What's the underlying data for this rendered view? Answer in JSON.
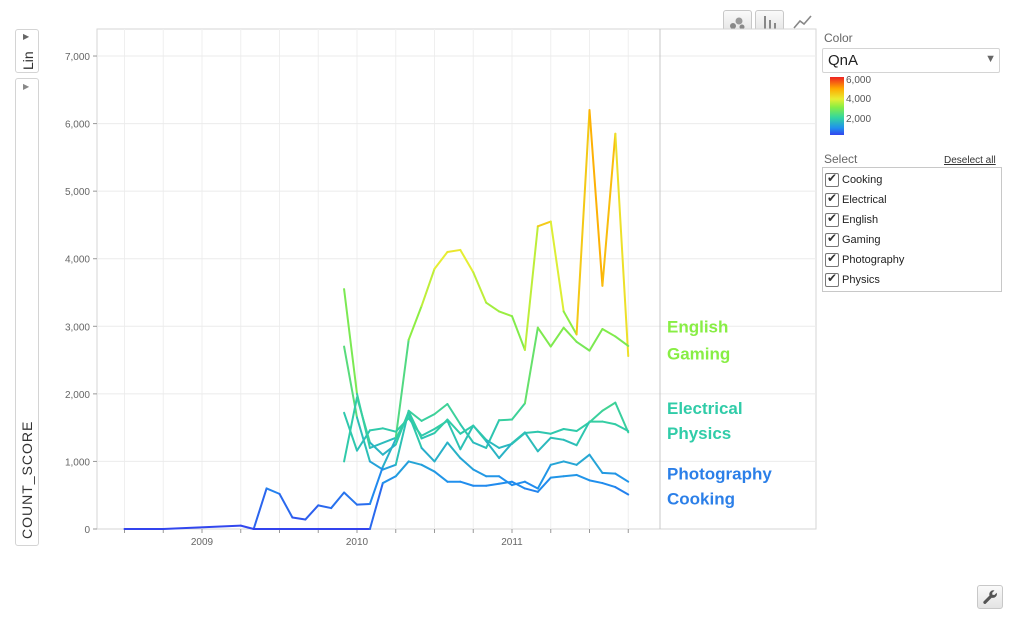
{
  "controls": {
    "scale_button": "Lin",
    "y_axis_metric": "COUNT_SCORE"
  },
  "icons": {
    "bubble": "bubble-chart-icon",
    "bar": "bar-chart-icon",
    "line": "line-chart-icon",
    "wrench": "wrench-icon",
    "dropdown": "chevron-down-icon"
  },
  "color_panel": {
    "label": "Color",
    "selected": "QnA",
    "gradient_ticks": [
      "6,000",
      "4,000",
      "2,000"
    ],
    "gradient_colors": [
      "#ee2222",
      "#ffaa00",
      "#e8ee33",
      "#88ee44",
      "#33d6a0",
      "#2090ee",
      "#3344ee"
    ]
  },
  "select_panel": {
    "label": "Select",
    "deselect_all": "Deselect all",
    "items": [
      "Cooking",
      "Electrical",
      "English",
      "Gaming",
      "Photography",
      "Physics"
    ]
  },
  "chart_data": {
    "type": "line",
    "xlabel": "",
    "ylabel": "COUNT_SCORE",
    "ylim": [
      0,
      7400
    ],
    "y_ticks": [
      "0",
      "1,000",
      "2,000",
      "3,000",
      "4,000",
      "5,000",
      "6,000",
      "7,000"
    ],
    "x_ticks": [
      "2009",
      "2010",
      "2011"
    ],
    "x_range": [
      "2008-07",
      "2012-01"
    ],
    "grid": true,
    "color_by": "QnA",
    "color_scale": [
      [
        0,
        "#3344ee"
      ],
      [
        700,
        "#2090ee"
      ],
      [
        1500,
        "#30cca8"
      ],
      [
        3000,
        "#88ee44"
      ],
      [
        4000,
        "#e8ee33"
      ],
      [
        5000,
        "#ffaa00"
      ],
      [
        6200,
        "#ee2222"
      ]
    ],
    "series": [
      {
        "name": "English",
        "points": [
          [
            "2009-12",
            3550
          ],
          [
            "2010-01",
            2000
          ],
          [
            "2010-02",
            1200
          ],
          [
            "2010-04",
            1350
          ],
          [
            "2010-05",
            2800
          ],
          [
            "2010-06",
            3300
          ],
          [
            "2010-07",
            3850
          ],
          [
            "2010-08",
            4100
          ],
          [
            "2010-09",
            4130
          ],
          [
            "2010-10",
            3800
          ],
          [
            "2010-11",
            3350
          ],
          [
            "2010-12",
            3220
          ],
          [
            "2011-01",
            3150
          ],
          [
            "2011-02",
            2650
          ],
          [
            "2011-03",
            4480
          ],
          [
            "2011-04",
            4550
          ],
          [
            "2011-05",
            3220
          ],
          [
            "2011-06",
            2880
          ],
          [
            "2011-07",
            6200
          ],
          [
            "2011-08",
            3600
          ],
          [
            "2011-09",
            5850
          ],
          [
            "2011-10",
            2560
          ]
        ]
      },
      {
        "name": "Gaming",
        "points": [
          [
            "2009-12",
            2700
          ],
          [
            "2010-01",
            1650
          ],
          [
            "2010-02",
            1000
          ],
          [
            "2010-03",
            880
          ],
          [
            "2010-04",
            950
          ],
          [
            "2010-05",
            1750
          ],
          [
            "2010-06",
            1600
          ],
          [
            "2010-07",
            1700
          ],
          [
            "2010-08",
            1850
          ],
          [
            "2010-09",
            1550
          ],
          [
            "2010-10",
            1280
          ],
          [
            "2010-11",
            1200
          ],
          [
            "2010-12",
            1610
          ],
          [
            "2011-01",
            1620
          ],
          [
            "2011-02",
            1860
          ],
          [
            "2011-03",
            2980
          ],
          [
            "2011-04",
            2700
          ],
          [
            "2011-05",
            2980
          ],
          [
            "2011-06",
            2770
          ],
          [
            "2011-07",
            2640
          ],
          [
            "2011-08",
            2960
          ],
          [
            "2011-09",
            2850
          ],
          [
            "2011-10",
            2710
          ]
        ]
      },
      {
        "name": "Electrical",
        "points": [
          [
            "2009-12",
            1720
          ],
          [
            "2010-01",
            1160
          ],
          [
            "2010-02",
            1460
          ],
          [
            "2010-03",
            1490
          ],
          [
            "2010-04",
            1440
          ],
          [
            "2010-05",
            1640
          ],
          [
            "2010-06",
            1380
          ],
          [
            "2010-07",
            1480
          ],
          [
            "2010-08",
            1600
          ],
          [
            "2010-09",
            1180
          ],
          [
            "2010-10",
            1530
          ],
          [
            "2010-11",
            1320
          ],
          [
            "2010-12",
            1200
          ],
          [
            "2011-01",
            1260
          ],
          [
            "2011-02",
            1420
          ],
          [
            "2011-03",
            1440
          ],
          [
            "2011-04",
            1410
          ],
          [
            "2011-05",
            1480
          ],
          [
            "2011-06",
            1450
          ],
          [
            "2011-07",
            1580
          ],
          [
            "2011-08",
            1750
          ],
          [
            "2011-09",
            1870
          ],
          [
            "2011-10",
            1430
          ]
        ]
      },
      {
        "name": "Physics",
        "points": [
          [
            "2009-12",
            1000
          ],
          [
            "2010-01",
            1950
          ],
          [
            "2010-02",
            1280
          ],
          [
            "2010-03",
            1100
          ],
          [
            "2010-04",
            1250
          ],
          [
            "2010-05",
            1740
          ],
          [
            "2010-06",
            1340
          ],
          [
            "2010-07",
            1420
          ],
          [
            "2010-08",
            1620
          ],
          [
            "2010-09",
            1410
          ],
          [
            "2010-10",
            1530
          ],
          [
            "2010-11",
            1300
          ],
          [
            "2010-12",
            1050
          ],
          [
            "2011-01",
            1270
          ],
          [
            "2011-02",
            1430
          ],
          [
            "2011-03",
            1150
          ],
          [
            "2011-04",
            1350
          ],
          [
            "2011-05",
            1320
          ],
          [
            "2011-06",
            1240
          ],
          [
            "2011-07",
            1590
          ],
          [
            "2011-08",
            1590
          ],
          [
            "2011-09",
            1550
          ],
          [
            "2011-10",
            1450
          ]
        ]
      },
      {
        "name": "Photography",
        "points": [
          [
            "2009-05",
            0
          ],
          [
            "2009-06",
            600
          ],
          [
            "2009-07",
            520
          ],
          [
            "2009-08",
            170
          ],
          [
            "2009-09",
            140
          ],
          [
            "2009-10",
            350
          ],
          [
            "2009-11",
            310
          ],
          [
            "2009-12",
            540
          ],
          [
            "2010-01",
            360
          ],
          [
            "2010-02",
            370
          ],
          [
            "2010-03",
            920
          ],
          [
            "2010-04",
            1330
          ],
          [
            "2010-05",
            1700
          ],
          [
            "2010-06",
            1200
          ],
          [
            "2010-07",
            1000
          ],
          [
            "2010-08",
            1280
          ],
          [
            "2010-09",
            1050
          ],
          [
            "2010-10",
            880
          ],
          [
            "2010-11",
            780
          ],
          [
            "2010-12",
            780
          ],
          [
            "2011-01",
            650
          ],
          [
            "2011-02",
            700
          ],
          [
            "2011-03",
            600
          ],
          [
            "2011-04",
            950
          ],
          [
            "2011-05",
            1000
          ],
          [
            "2011-06",
            950
          ],
          [
            "2011-07",
            1100
          ],
          [
            "2011-08",
            830
          ],
          [
            "2011-09",
            820
          ],
          [
            "2011-10",
            700
          ]
        ]
      },
      {
        "name": "Cooking",
        "points": [
          [
            "2008-07",
            0
          ],
          [
            "2008-10",
            0
          ],
          [
            "2009-04",
            50
          ],
          [
            "2009-05",
            0
          ],
          [
            "2009-11",
            0
          ],
          [
            "2010-02",
            0
          ],
          [
            "2010-03",
            680
          ],
          [
            "2010-04",
            780
          ],
          [
            "2010-05",
            1000
          ],
          [
            "2010-06",
            950
          ],
          [
            "2010-07",
            850
          ],
          [
            "2010-08",
            700
          ],
          [
            "2010-09",
            700
          ],
          [
            "2010-10",
            640
          ],
          [
            "2010-11",
            640
          ],
          [
            "2010-12",
            670
          ],
          [
            "2011-01",
            700
          ],
          [
            "2011-02",
            600
          ],
          [
            "2011-03",
            550
          ],
          [
            "2011-04",
            760
          ],
          [
            "2011-05",
            780
          ],
          [
            "2011-06",
            800
          ],
          [
            "2011-07",
            720
          ],
          [
            "2011-08",
            680
          ],
          [
            "2011-09",
            620
          ],
          [
            "2011-10",
            510
          ]
        ]
      }
    ],
    "end_labels": [
      {
        "text": "English",
        "value": 3000,
        "color": "#88ee44"
      },
      {
        "text": "Gaming",
        "value": 2600,
        "color": "#88ee44"
      },
      {
        "text": "Electrical",
        "value": 1790,
        "color": "#30cca8"
      },
      {
        "text": "Physics",
        "value": 1420,
        "color": "#30cca8"
      },
      {
        "text": "Photography",
        "value": 820,
        "color": "#2b7fe8"
      },
      {
        "text": "Cooking",
        "value": 450,
        "color": "#2b7fe8"
      }
    ]
  }
}
